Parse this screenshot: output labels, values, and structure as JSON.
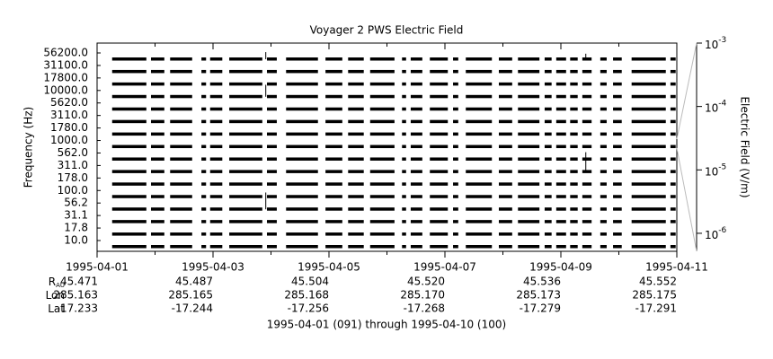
{
  "chart_data": {
    "type": "channel-coverage",
    "title": "Voyager 2 PWS Electric Field",
    "ylabel": "Frequency (Hz)",
    "y2label": "Electric Field (V/m)",
    "channels": [
      "10.0",
      "17.8",
      "31.1",
      "56.2",
      "100.0",
      "178.0",
      "311.0",
      "562.0",
      "1000.0",
      "1780.0",
      "3110.0",
      "5620.0",
      "10000.0",
      "17800.0",
      "31100.0",
      "56200.0"
    ],
    "xlim": [
      0,
      10
    ],
    "xticks": [
      {
        "value": 0,
        "label": "1995-04-01"
      },
      {
        "value": 2,
        "label": "1995-04-03"
      },
      {
        "value": 4,
        "label": "1995-04-05"
      },
      {
        "value": 6,
        "label": "1995-04-07"
      },
      {
        "value": 8,
        "label": "1995-04-09"
      },
      {
        "value": 10,
        "label": "1995-04-11"
      }
    ],
    "xminor_ticks": [
      1,
      3,
      5,
      7,
      9
    ],
    "y2lim": [
      5.2e-07,
      0.001
    ],
    "y2log": true,
    "y2ticks": [
      {
        "value": 1e-06,
        "label": "10",
        "exp": "-6"
      },
      {
        "value": 1e-05,
        "label": "10",
        "exp": "-5"
      },
      {
        "value": 0.0001,
        "label": "10",
        "exp": "-4"
      },
      {
        "value": 0.001,
        "label": "10",
        "exp": "-3"
      }
    ],
    "color": "#000000",
    "coverage": [
      [
        0.26,
        0.85
      ],
      [
        0.93,
        1.16
      ],
      [
        1.26,
        1.64
      ],
      [
        1.8,
        1.88
      ],
      [
        1.95,
        2.16
      ],
      [
        2.28,
        2.85
      ],
      [
        2.93,
        3.1
      ],
      [
        3.26,
        3.81
      ],
      [
        3.94,
        4.23
      ],
      [
        4.33,
        4.6
      ],
      [
        4.71,
        5.13
      ],
      [
        5.26,
        5.33
      ],
      [
        5.41,
        5.61
      ],
      [
        5.74,
        6.05
      ],
      [
        6.14,
        6.23
      ],
      [
        6.36,
        6.81
      ],
      [
        6.93,
        7.16
      ],
      [
        7.26,
        7.63
      ],
      [
        7.72,
        7.84
      ],
      [
        7.92,
        8.09
      ],
      [
        8.16,
        8.29
      ],
      [
        8.37,
        8.53
      ],
      [
        8.68,
        8.79
      ],
      [
        8.9,
        9.05
      ],
      [
        9.22,
        9.81
      ],
      [
        9.89,
        9.98
      ]
    ],
    "spikes": [
      {
        "channel": 15,
        "x": 2.91,
        "value": 0.00072
      },
      {
        "channel": 12,
        "x": 2.91,
        "value": 0.00022
      },
      {
        "channel": 3,
        "x": 2.91,
        "value": 4.4e-06
      },
      {
        "channel": 15,
        "x": 8.43,
        "value": 0.00068
      },
      {
        "channel": 6,
        "x": 8.43,
        "value": 1.9e-05
      }
    ],
    "ephemeris": [
      {
        "label": "R",
        "sub": "AU",
        "values": [
          "45.471",
          "45.487",
          "45.504",
          "45.520",
          "45.536",
          "45.552"
        ]
      },
      {
        "label": "Lon",
        "values": [
          "285.163",
          "285.165",
          "285.168",
          "285.170",
          "285.173",
          "285.175"
        ]
      },
      {
        "label": "Lat",
        "values": [
          "-17.233",
          "-17.244",
          "-17.256",
          "-17.268",
          "-17.279",
          "-17.291"
        ]
      }
    ],
    "footer": "1995-04-01 (091) through 1995-04-10 (100)"
  }
}
